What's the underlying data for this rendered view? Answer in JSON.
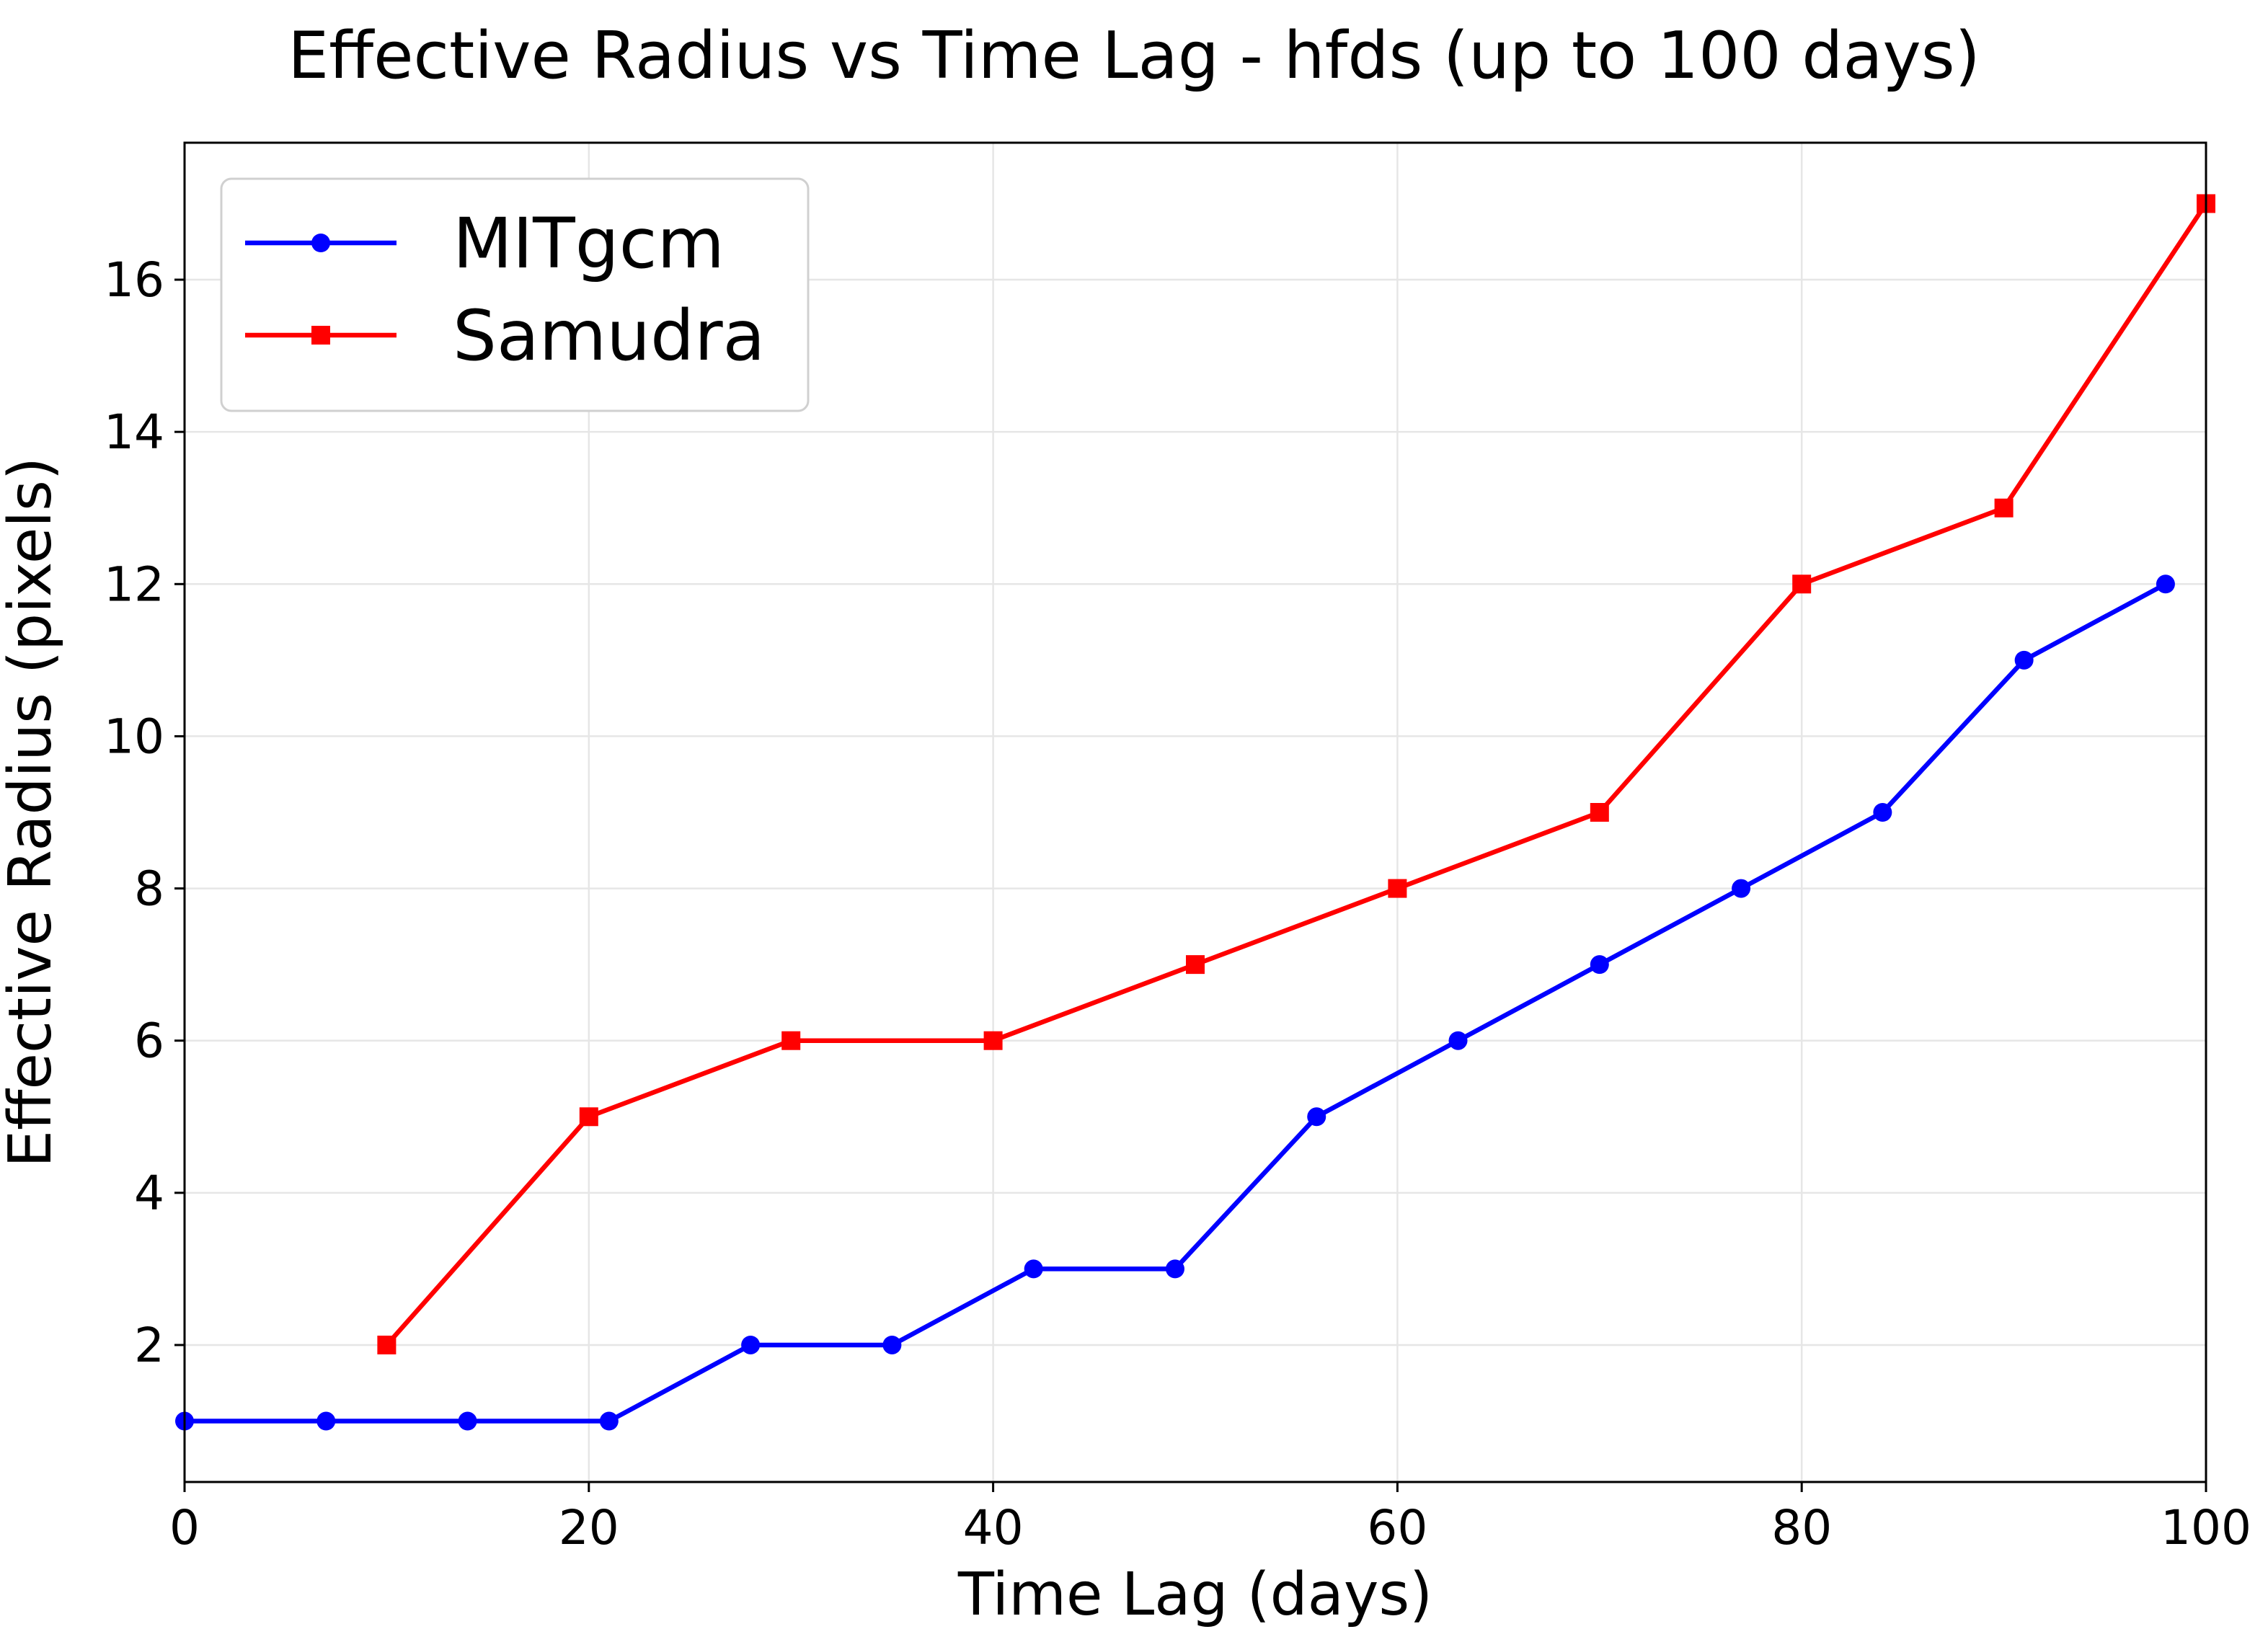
{
  "chart_data": {
    "type": "line",
    "title": "Effective Radius vs Time Lag - hfds (up to 100 days)",
    "xlabel": "Time Lag (days)",
    "ylabel": "Effective Radius (pixels)",
    "xlim": [
      0,
      100
    ],
    "ylim": [
      0.2,
      17.8
    ],
    "xticks": [
      0,
      20,
      40,
      60,
      80,
      100
    ],
    "yticks": [
      2,
      4,
      6,
      8,
      10,
      12,
      14,
      16
    ],
    "grid": true,
    "legend_position": "top-left",
    "series": [
      {
        "name": "MITgcm",
        "color": "#0000ff",
        "marker": "circle",
        "x": [
          0,
          7,
          14,
          21,
          28,
          35,
          42,
          49,
          56,
          63,
          70,
          77,
          84,
          91,
          98
        ],
        "y": [
          1,
          1,
          1,
          1,
          2,
          2,
          3,
          3,
          5,
          6,
          7,
          8,
          9,
          11,
          12
        ]
      },
      {
        "name": "Samudra",
        "color": "#ff0000",
        "marker": "square",
        "x": [
          10,
          20,
          30,
          40,
          50,
          60,
          70,
          80,
          90,
          100
        ],
        "y": [
          2,
          5,
          6,
          6,
          7,
          8,
          9,
          12,
          13,
          17
        ]
      }
    ]
  }
}
